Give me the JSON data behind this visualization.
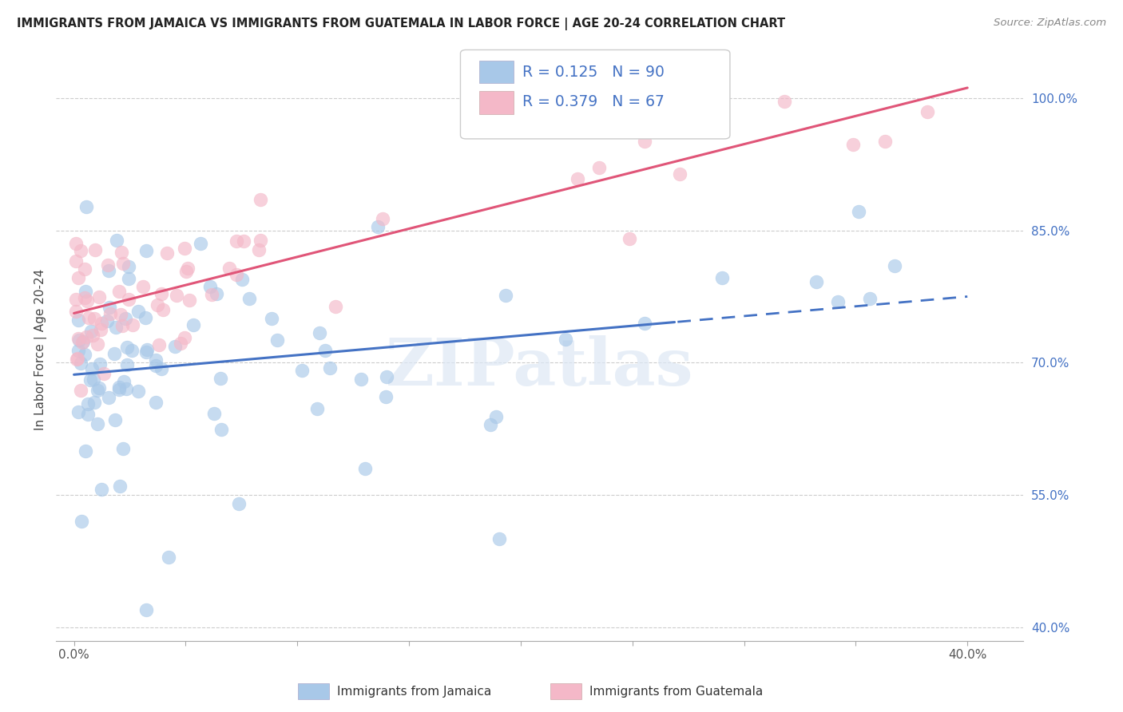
{
  "title": "IMMIGRANTS FROM JAMAICA VS IMMIGRANTS FROM GUATEMALA IN LABOR FORCE | AGE 20-24 CORRELATION CHART",
  "source_text": "Source: ZipAtlas.com",
  "ylabel": "In Labor Force | Age 20-24",
  "jamaica_color": "#a8c8e8",
  "guatemala_color": "#f4b8c8",
  "jamaica_line_color": "#4472c4",
  "guatemala_line_color": "#e05578",
  "legend_text_color": "#4472c4",
  "right_axis_color": "#4472c4",
  "jamaica_R": 0.125,
  "jamaica_N": 90,
  "guatemala_R": 0.379,
  "guatemala_N": 67,
  "xlim": [
    -0.008,
    0.425
  ],
  "ylim": [
    0.385,
    1.045
  ],
  "xticks": [
    0.0,
    0.05,
    0.1,
    0.15,
    0.2,
    0.25,
    0.3,
    0.35,
    0.4
  ],
  "xtick_labels": [
    "0.0%",
    "",
    "",
    "",
    "",
    "",
    "",
    "",
    "40.0%"
  ],
  "yticks_right": [
    0.4,
    0.55,
    0.7,
    0.85,
    1.0
  ],
  "ytick_labels_right": [
    "40.0%",
    "55.0%",
    "70.0%",
    "85.0%",
    "100.0%"
  ],
  "watermark": "ZIPatlas",
  "jamaica_seed": 777,
  "guatemala_seed": 888,
  "jamaica_line_solid_end": 0.28,
  "jamaica_line_x_start": 0.0,
  "jamaica_line_x_end": 0.4,
  "guatemala_line_x_start": 0.0,
  "guatemala_line_x_end": 0.4
}
